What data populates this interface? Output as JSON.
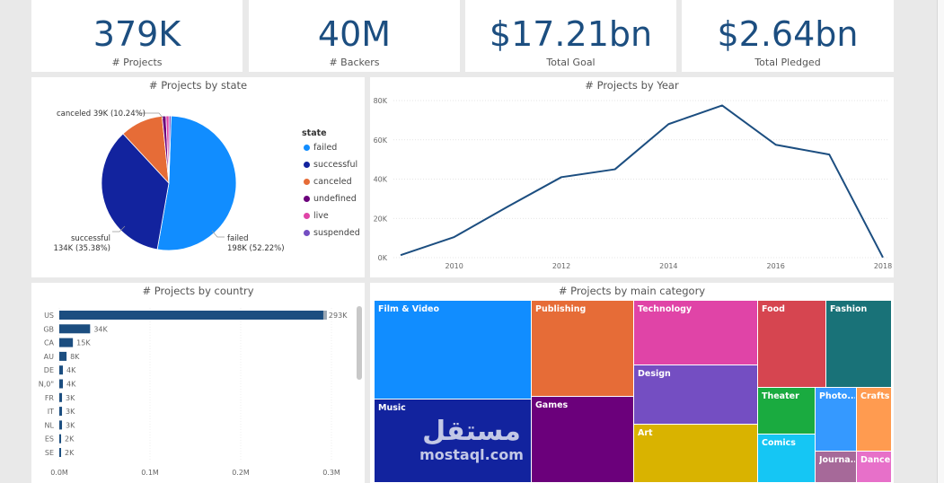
{
  "kpis": [
    {
      "value": "379K",
      "label": "# Projects"
    },
    {
      "value": "40M",
      "label": "# Backers"
    },
    {
      "value": "$17.21bn",
      "label": "Total Goal"
    },
    {
      "value": "$2.64bn",
      "label": "Total Pledged"
    }
  ],
  "pie": {
    "title": "# Projects by state",
    "legend_title": "state",
    "labels": {
      "canceled": "canceled 39K (10.24%)",
      "successful_1": "successful",
      "successful_2": "134K (35.38%)",
      "failed_1": "failed",
      "failed_2": "198K (52.22%)"
    },
    "items": [
      {
        "name": "failed",
        "value": 198,
        "color": "#118dff"
      },
      {
        "name": "successful",
        "value": 134,
        "color": "#12239e"
      },
      {
        "name": "canceled",
        "value": 39,
        "color": "#e66c37"
      },
      {
        "name": "undefined",
        "value": 3.5,
        "color": "#6b007b"
      },
      {
        "name": "live",
        "value": 2.8,
        "color": "#e044a7"
      },
      {
        "name": "suspended",
        "value": 1.8,
        "color": "#744ec2"
      }
    ]
  },
  "chart_data": [
    {
      "type": "pie",
      "title": "# Projects by state",
      "categories": [
        "failed",
        "successful",
        "canceled",
        "undefined",
        "live",
        "suspended"
      ],
      "values": [
        198,
        134,
        39,
        3.5,
        2.8,
        1.8
      ]
    },
    {
      "type": "line",
      "title": "# Projects by Year",
      "x": [
        2009,
        2010,
        2011,
        2012,
        2013,
        2014,
        2015,
        2016,
        2017,
        2018
      ],
      "values": [
        1.3,
        10.5,
        26,
        41,
        45,
        68,
        77.5,
        57.5,
        52.5,
        0.1
      ],
      "yticks": [
        "0K",
        "20K",
        "40K",
        "60K",
        "80K"
      ],
      "xticks": [
        "2010",
        "2012",
        "2014",
        "2016",
        "2018"
      ],
      "ylim": [
        0,
        80
      ],
      "color": "#1c4e80"
    },
    {
      "type": "bar",
      "title": "# Projects by country",
      "categories": [
        "US",
        "GB",
        "CA",
        "AU",
        "DE",
        "N,0\"",
        "FR",
        "IT",
        "NL",
        "ES",
        "SE"
      ],
      "values": [
        293,
        34,
        15,
        8,
        4,
        4,
        3,
        3,
        3,
        2,
        2
      ],
      "labels": [
        "293K",
        "34K",
        "15K",
        "8K",
        "4K",
        "4K",
        "3K",
        "3K",
        "3K",
        "2K",
        "2K"
      ],
      "xticks": [
        "0.0M",
        "0.1M",
        "0.2M",
        "0.3M"
      ],
      "xlim": [
        0,
        0.3
      ],
      "color": "#1c4e80"
    },
    {
      "type": "treemap",
      "title": "# Projects by main category",
      "categories": [
        "Film & Video",
        "Music",
        "Publishing",
        "Games",
        "Technology",
        "Design",
        "Art",
        "Food",
        "Fashion",
        "Theater",
        "Photo...",
        "Crafts",
        "Comics",
        "Journa...",
        "Dance"
      ]
    }
  ],
  "line": {
    "title": "# Projects by Year"
  },
  "bars": {
    "title": "# Projects by country"
  },
  "treemap": {
    "title": "# Projects by main category",
    "tiles": [
      {
        "name": "Film & Video",
        "color": "#118dff"
      },
      {
        "name": "Music",
        "color": "#12239e"
      },
      {
        "name": "Publishing",
        "color": "#e66c37"
      },
      {
        "name": "Games",
        "color": "#6b007b"
      },
      {
        "name": "Technology",
        "color": "#e044a7"
      },
      {
        "name": "Design",
        "color": "#744ec2"
      },
      {
        "name": "Art",
        "color": "#d9b300"
      },
      {
        "name": "Food",
        "color": "#d64550"
      },
      {
        "name": "Fashion",
        "color": "#197278"
      },
      {
        "name": "Theater",
        "color": "#1aab40"
      },
      {
        "name": "Photo...",
        "color": "#3599ff"
      },
      {
        "name": "Crafts",
        "color": "#ff9b50"
      },
      {
        "name": "Comics",
        "color": "#15c6f4"
      },
      {
        "name": "Journa...",
        "color": "#a66999"
      },
      {
        "name": "Dance",
        "color": "#e770c9"
      }
    ]
  },
  "watermark": {
    "brand": "مستقل",
    "url": "mostaql.com"
  }
}
